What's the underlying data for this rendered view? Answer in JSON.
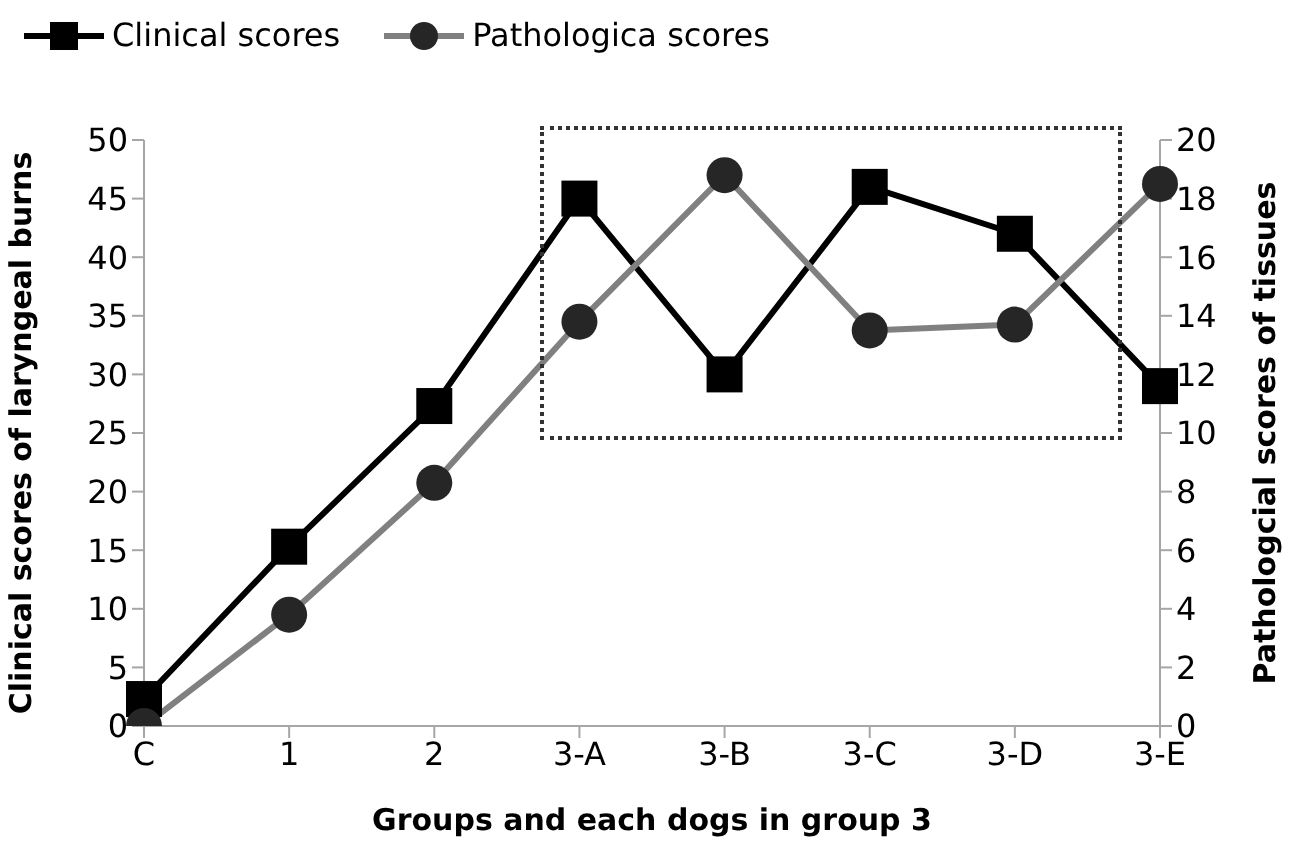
{
  "chart_data": {
    "type": "line",
    "xlabel": "Groups and each dogs in group 3",
    "ylabel": "Clinical scores of laryngeal burns",
    "y2label": "Pathologcial scores of tissues",
    "categories": [
      "C",
      "1",
      "2",
      "3-A",
      "3-B",
      "3-C",
      "3-D",
      "3-E"
    ],
    "series": [
      {
        "name": "Clinical scores",
        "color": "#000000",
        "marker": "square",
        "values": [
          2.3,
          15.3,
          27.3,
          45,
          30,
          46,
          42,
          29
        ]
      },
      {
        "name": "Pathologica scores",
        "color": "#808080",
        "marker": "circle",
        "axis": "y2",
        "values": [
          0,
          3.8,
          8.3,
          13.8,
          18.8,
          13.5,
          13.7,
          18.5
        ]
      }
    ],
    "ylim": [
      0,
      50
    ],
    "yticks": [
      0,
      5,
      10,
      15,
      20,
      25,
      30,
      35,
      40,
      45,
      50
    ],
    "y2lim": [
      0,
      20
    ],
    "y2ticks": [
      0,
      2,
      4,
      6,
      8,
      10,
      12,
      14,
      16,
      18,
      20
    ],
    "grid": false,
    "legend": "top left",
    "line_style": "solid"
  }
}
